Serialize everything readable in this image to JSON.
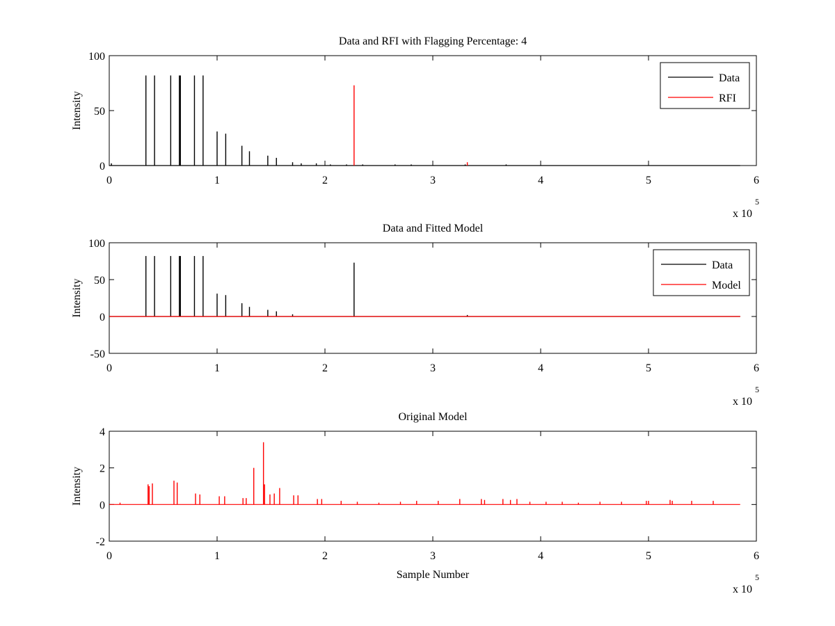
{
  "figure": {
    "background": "#ffffff"
  },
  "colors": {
    "data": "#000000",
    "rfi": "#ff0000",
    "model": "#ff0000",
    "axes": "#000000"
  },
  "chart_data": [
    {
      "type": "line",
      "title": "Data and RFI with Flagging Percentage: 4",
      "xlabel": "",
      "ylabel": "Intensity",
      "xlim": [
        0,
        6
      ],
      "ylim": [
        0,
        100
      ],
      "xticks": [
        0,
        1,
        2,
        3,
        4,
        5,
        6
      ],
      "yticks": [
        0,
        50,
        100
      ],
      "x_multiplier": "x 10",
      "x_exponent": "5",
      "grid": false,
      "legend": {
        "placement": "top-right",
        "entries": [
          "Data",
          "RFI"
        ]
      },
      "series": [
        {
          "name": "Data",
          "color": "#000000",
          "x": [
            0.02,
            0.34,
            0.42,
            0.57,
            0.65,
            0.66,
            0.79,
            0.87,
            1.0,
            1.08,
            1.23,
            1.3,
            1.47,
            1.55,
            1.7,
            1.78,
            1.92,
            2.05,
            2.2,
            2.35,
            2.65,
            2.8,
            3.3,
            3.68
          ],
          "values": [
            2,
            82,
            82,
            82,
            82,
            82,
            82,
            82,
            31,
            29,
            18,
            13,
            9,
            7,
            3,
            2,
            2,
            1,
            1,
            1,
            1,
            1,
            1,
            1
          ]
        },
        {
          "name": "RFI",
          "color": "#ff0000",
          "x": [
            2.27,
            3.32
          ],
          "values": [
            73,
            3
          ]
        }
      ]
    },
    {
      "type": "line",
      "title": "Data and Fitted Model",
      "xlabel": "",
      "ylabel": "Intensity",
      "xlim": [
        0,
        6
      ],
      "ylim": [
        -50,
        100
      ],
      "xticks": [
        0,
        1,
        2,
        3,
        4,
        5,
        6
      ],
      "yticks": [
        -50,
        0,
        50,
        100
      ],
      "x_multiplier": "x 10",
      "x_exponent": "5",
      "grid": false,
      "legend": {
        "placement": "top-right",
        "entries": [
          "Data",
          "Model"
        ]
      },
      "series": [
        {
          "name": "Data",
          "color": "#000000",
          "x": [
            0.34,
            0.42,
            0.57,
            0.65,
            0.66,
            0.79,
            0.87,
            1.0,
            1.08,
            1.23,
            1.3,
            1.47,
            1.55,
            1.7,
            2.27,
            3.32
          ],
          "values": [
            82,
            82,
            82,
            82,
            82,
            82,
            82,
            31,
            29,
            18,
            13,
            9,
            7,
            3,
            73,
            2
          ]
        },
        {
          "name": "Model",
          "color": "#ff0000",
          "x": [
            0,
            5.85
          ],
          "values": [
            0,
            0
          ]
        }
      ]
    },
    {
      "type": "line",
      "title": "Original Model",
      "xlabel": "Sample Number",
      "ylabel": "Intensity",
      "xlim": [
        0,
        6
      ],
      "ylim": [
        -2,
        4
      ],
      "xticks": [
        0,
        1,
        2,
        3,
        4,
        5,
        6
      ],
      "yticks": [
        -2,
        0,
        2,
        4
      ],
      "x_multiplier": "x 10",
      "x_exponent": "5",
      "grid": false,
      "series": [
        {
          "color": "#ff0000",
          "x": [
            0.1,
            0.36,
            0.37,
            0.4,
            0.6,
            0.63,
            0.8,
            0.84,
            1.02,
            1.07,
            1.24,
            1.27,
            1.34,
            1.43,
            1.44,
            1.49,
            1.53,
            1.58,
            1.71,
            1.75,
            1.93,
            1.97,
            2.15,
            2.3,
            2.5,
            2.7,
            2.85,
            3.05,
            3.25,
            3.45,
            3.48,
            3.65,
            3.72,
            3.78,
            3.9,
            4.05,
            4.2,
            4.35,
            4.55,
            4.75,
            4.98,
            5.0,
            5.2,
            5.22,
            5.4,
            5.6
          ],
          "values": [
            0.1,
            1.1,
            1.0,
            1.15,
            1.3,
            1.2,
            0.6,
            0.55,
            0.45,
            0.45,
            0.35,
            0.35,
            2.0,
            3.4,
            1.1,
            0.55,
            0.6,
            0.9,
            0.5,
            0.5,
            0.3,
            0.3,
            0.2,
            0.15,
            0.1,
            0.15,
            0.2,
            0.2,
            0.3,
            0.3,
            0.25,
            0.3,
            0.25,
            0.3,
            0.15,
            0.15,
            0.15,
            0.1,
            0.15,
            0.15,
            0.2,
            0.2,
            0.25,
            0.2,
            0.2,
            0.2
          ]
        }
      ]
    }
  ]
}
